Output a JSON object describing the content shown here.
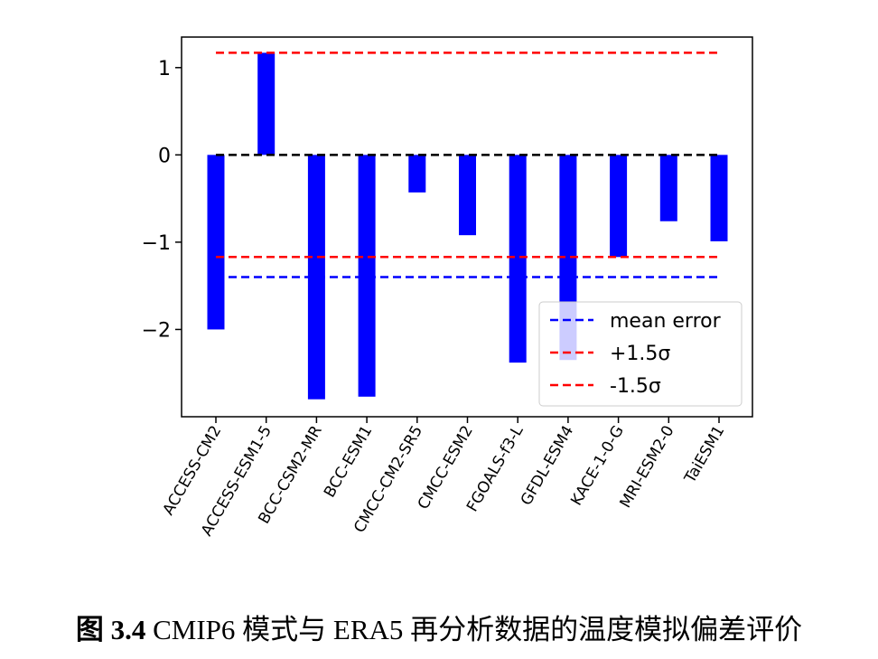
{
  "chart_data": {
    "type": "bar",
    "categories": [
      "ACCESS-CM2",
      "ACCESS-ESM1-5",
      "BCC-CSM2-MR",
      "BCC-ESM1",
      "CMCC-CM2-SR5",
      "CMCC-ESM2",
      "FGOALS-f3-L",
      "GFDL-ESM4",
      "KACE-1-0-G",
      "MRI-ESM2-0",
      "TaiESM1"
    ],
    "values": [
      -2.0,
      1.17,
      -2.8,
      -2.77,
      -0.43,
      -0.92,
      -2.38,
      -2.35,
      -1.17,
      -0.76,
      -0.99
    ],
    "bar_color": "#0000ff",
    "ylim": [
      -3.0,
      1.35
    ],
    "yticks": [
      1,
      0,
      -1,
      -2
    ],
    "ytick_labels": [
      "1",
      "0",
      "−1",
      "−2"
    ],
    "xlabel": "",
    "ylabel": "",
    "title": "",
    "reference_lines": [
      {
        "name": "mean error",
        "y": -1.4,
        "color": "#0000ff"
      },
      {
        "name": "+1.5σ",
        "y": 1.17,
        "color": "#ff0000"
      },
      {
        "name": "-1.5σ",
        "y": -1.17,
        "color": "#ff0000"
      },
      {
        "name": "",
        "y": 0,
        "color": "#000000"
      }
    ],
    "legend": {
      "placement": "lower-right",
      "entries": [
        {
          "label": "mean error",
          "color": "#0000ff"
        },
        {
          "label": "+1.5σ",
          "color": "#ff0000"
        },
        {
          "label": "-1.5σ",
          "color": "#ff0000"
        }
      ]
    },
    "grid": false
  },
  "caption": {
    "figure_label": "图 3.4",
    "text": " CMIP6  模式与 ERA5 再分析数据的温度模拟偏差评价"
  }
}
